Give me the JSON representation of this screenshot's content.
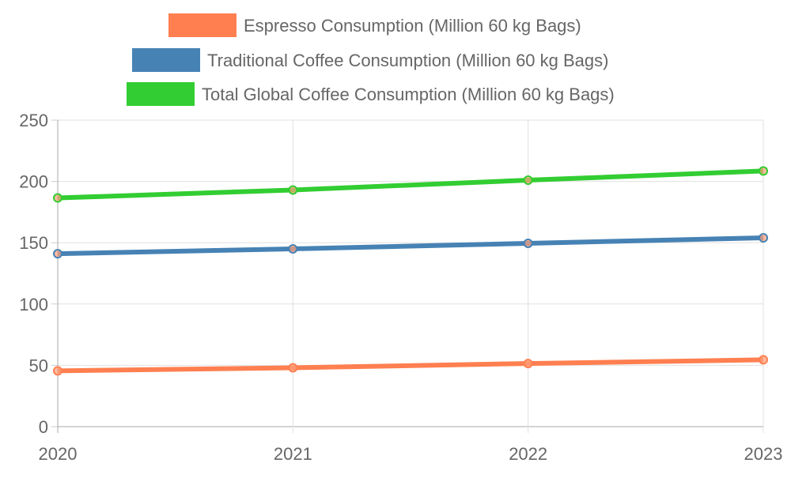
{
  "chart_data": {
    "type": "line",
    "categories": [
      "2020",
      "2021",
      "2022",
      "2023"
    ],
    "ylim": [
      0,
      250
    ],
    "yticks": [
      0,
      50,
      100,
      150,
      200,
      250
    ],
    "grid": true,
    "legend_placement": "top",
    "series": [
      {
        "name": "Espresso Consumption (Million 60 kg Bags)",
        "color": "#ff7f50",
        "values": [
          45.5,
          48,
          51.5,
          54.5
        ]
      },
      {
        "name": "Traditional Coffee Consumption (Million 60 kg Bags)",
        "color": "#4682b4",
        "values": [
          141,
          145,
          149.5,
          154
        ]
      },
      {
        "name": "Total Global Coffee Consumption (Million 60 kg Bags)",
        "color": "#32cd32",
        "values": [
          186.5,
          193,
          201,
          208.5
        ]
      }
    ]
  }
}
